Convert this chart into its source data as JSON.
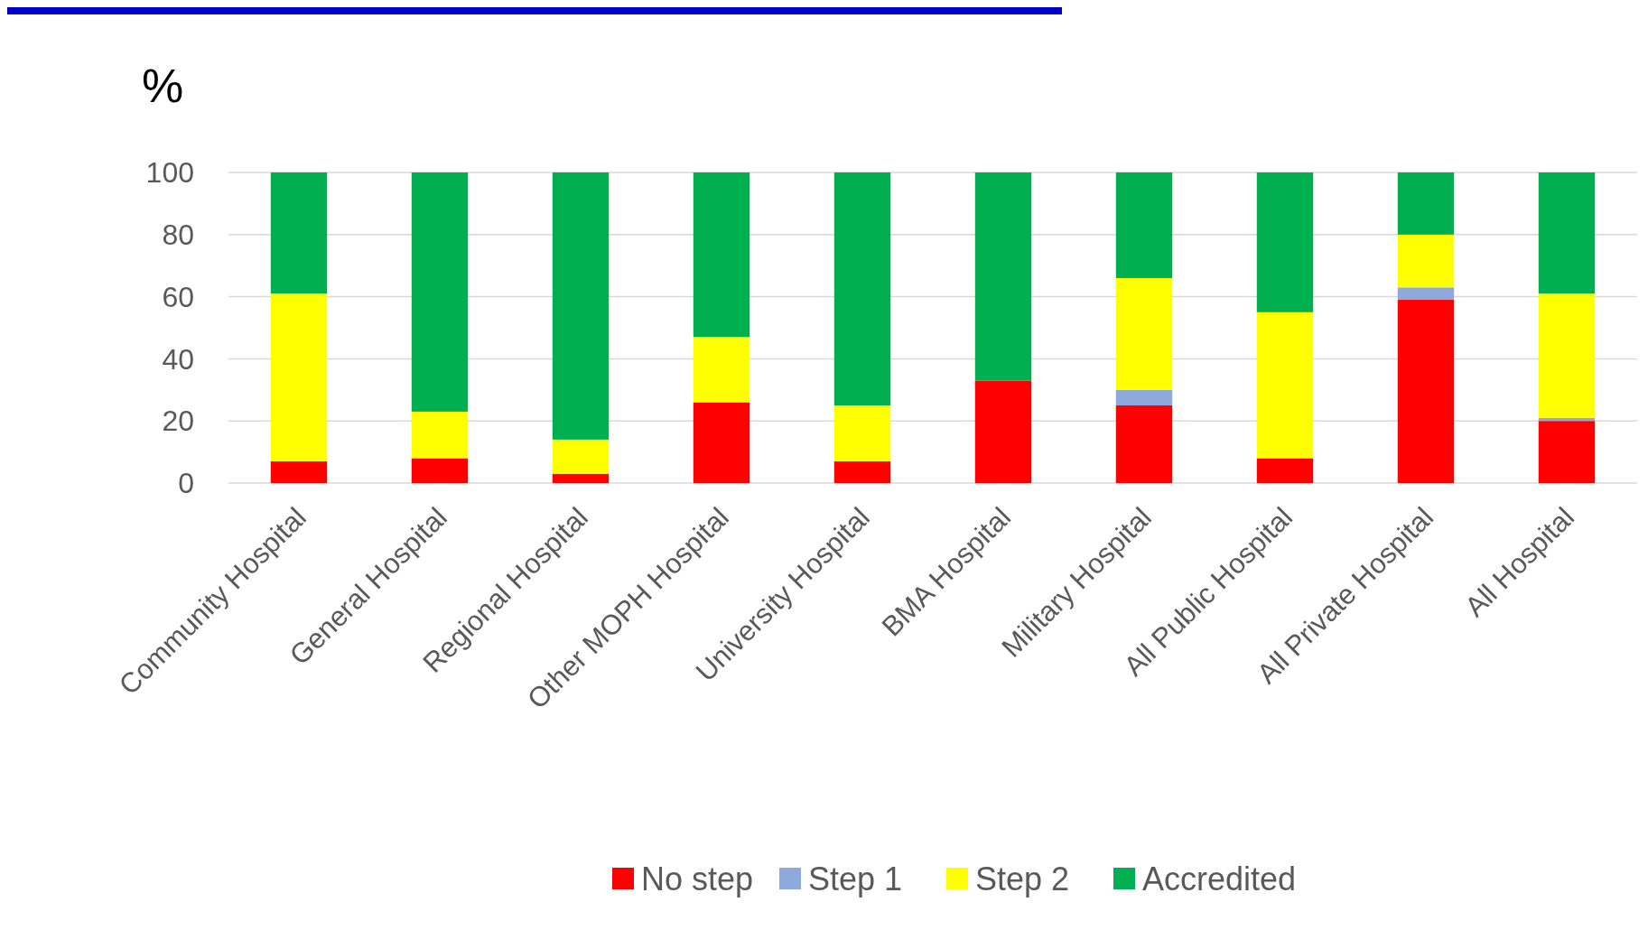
{
  "chart_data": {
    "type": "bar",
    "stacked": true,
    "ylabel": "%",
    "categories": [
      "Community Hospital",
      "General Hospital",
      "Regional Hospital",
      "Other MOPH Hospital",
      "University Hospital",
      "BMA Hospital",
      "Military Hospital",
      "All Public Hospital",
      "All Private Hospital",
      "All Hospital"
    ],
    "series": [
      {
        "name": "No step",
        "color": "#ff0000",
        "values": [
          7,
          8,
          3,
          26,
          7,
          33,
          25,
          8,
          59,
          20
        ]
      },
      {
        "name": "Step 1",
        "color": "#8ea9db",
        "values": [
          0,
          0,
          0,
          0,
          0,
          0,
          5,
          0,
          4,
          1
        ]
      },
      {
        "name": "Step 2",
        "color": "#ffff00",
        "values": [
          54,
          15,
          11,
          21,
          18,
          0,
          36,
          47,
          17,
          40
        ]
      },
      {
        "name": "Accredited",
        "color": "#00b050",
        "values": [
          39,
          77,
          86,
          53,
          75,
          67,
          34,
          45,
          20,
          39
        ]
      }
    ],
    "ylim": [
      0,
      100
    ],
    "yticks": [
      0,
      20,
      40,
      60,
      80,
      100
    ],
    "grid": "y",
    "legend": "bottom"
  }
}
